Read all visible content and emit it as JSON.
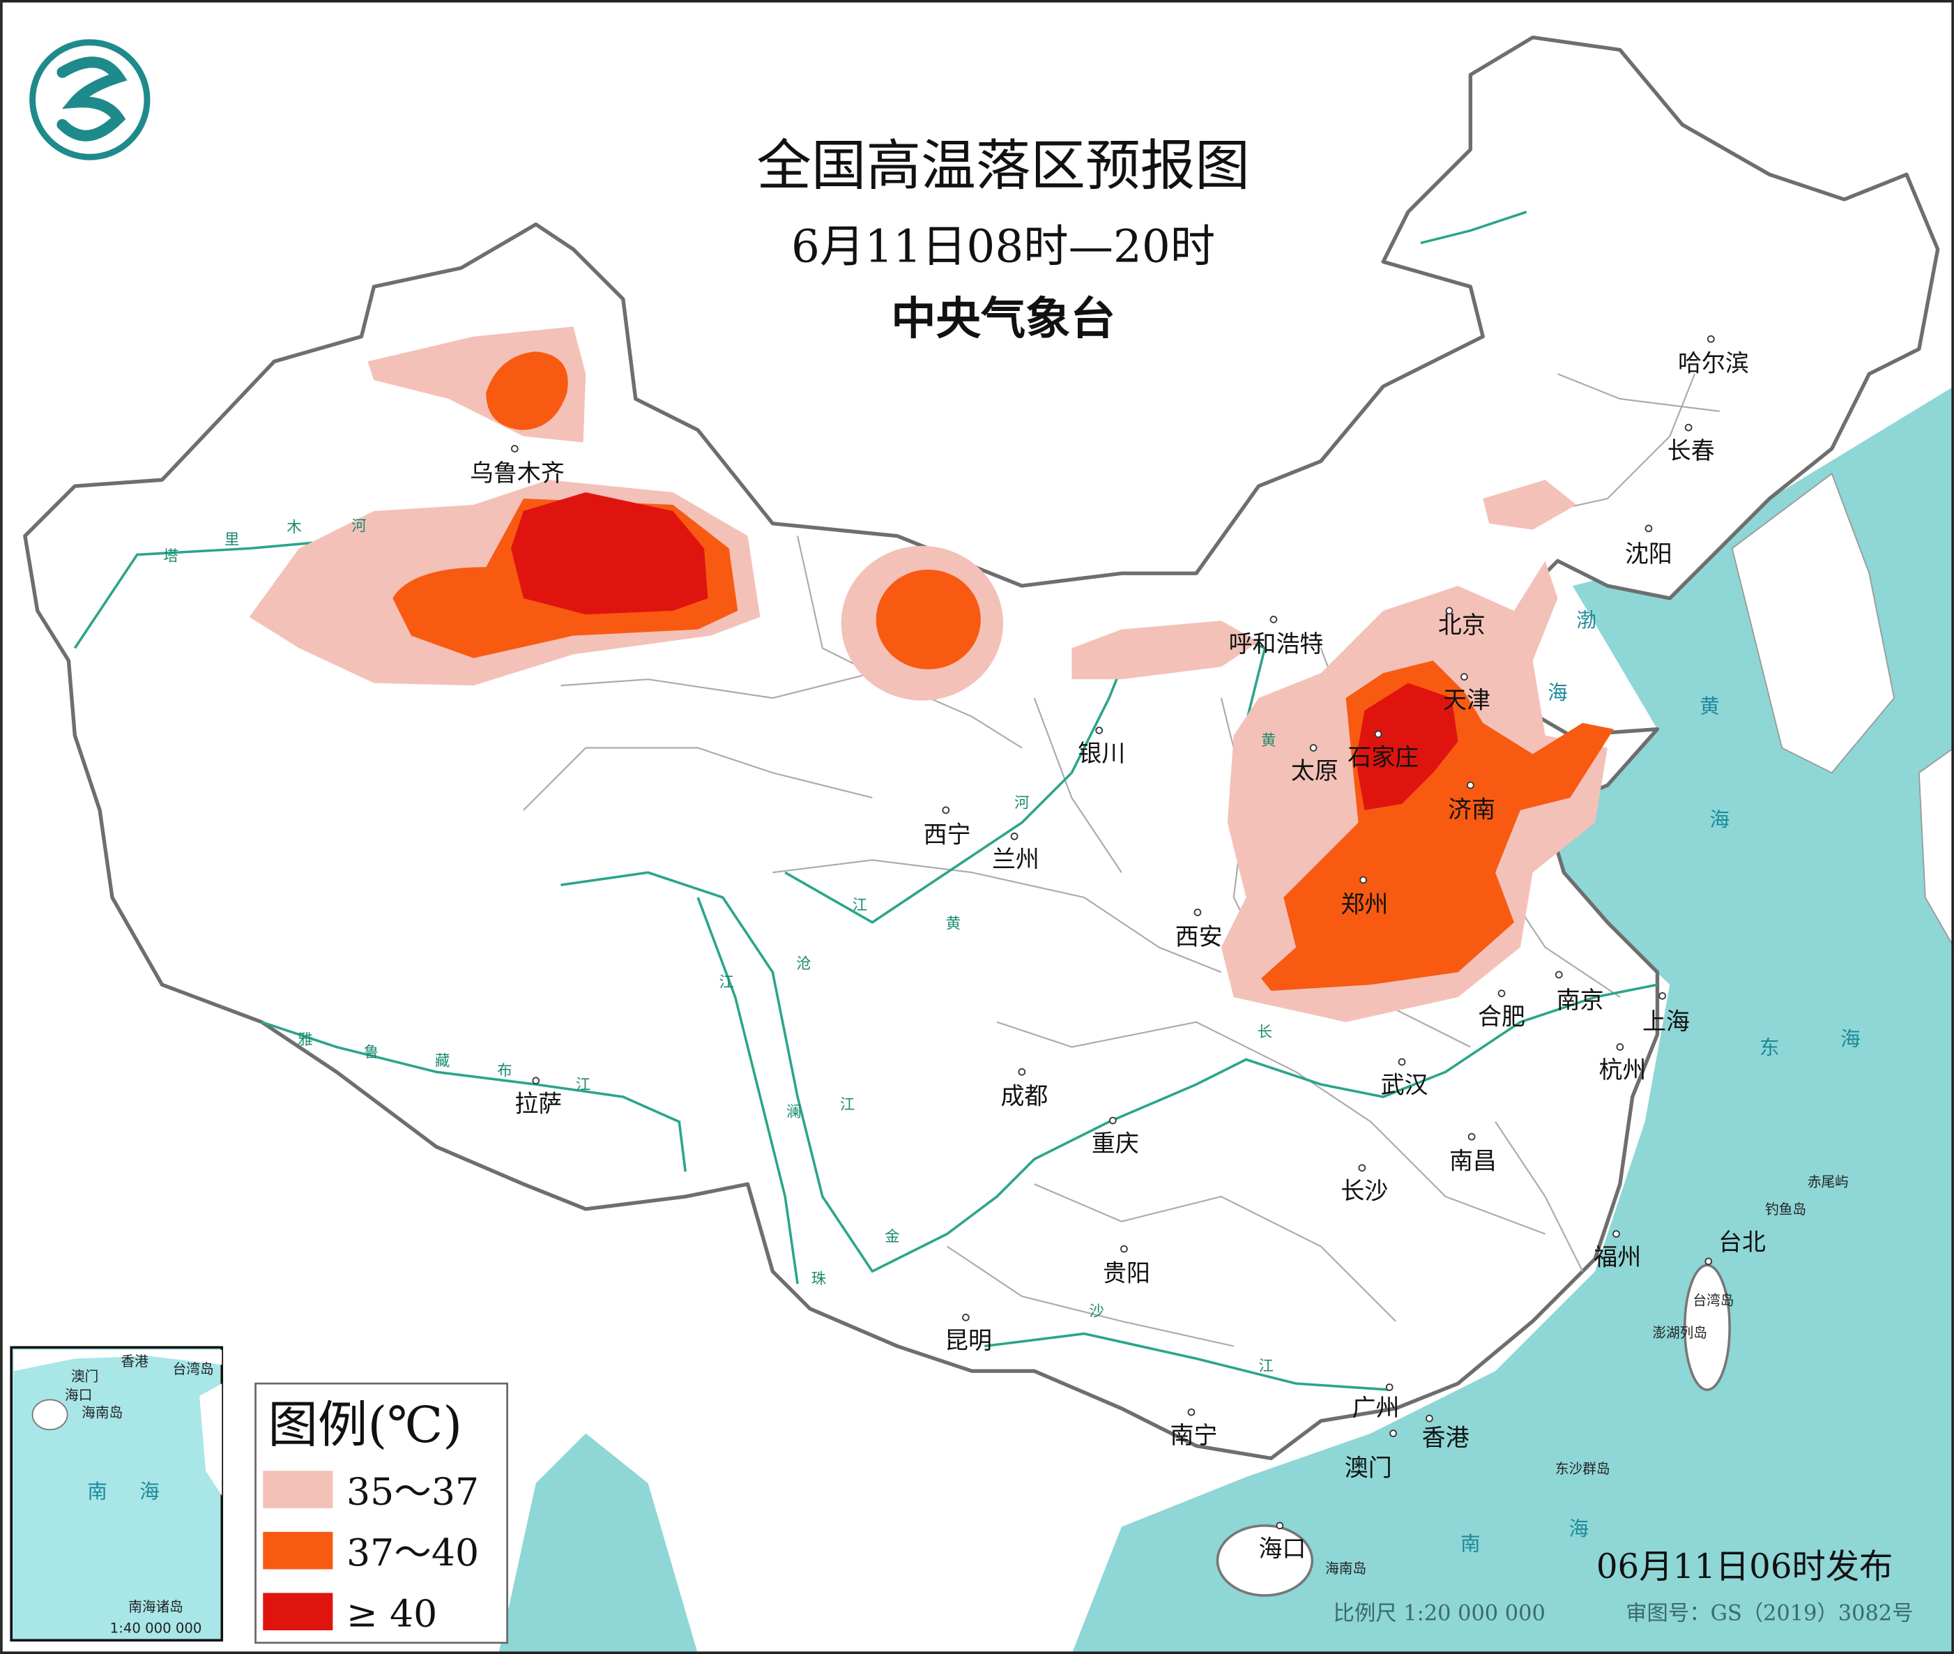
{
  "header": {
    "title": "全国高温落区预报图",
    "subtitle": "6月11日08时—20时",
    "issuer": "中央气象台"
  },
  "logo": {
    "icon": "cma-logo-icon",
    "color": "#1f8a8c"
  },
  "colors": {
    "sea": "#8fd6d6",
    "land": "#ffffff",
    "border": "#777777",
    "river": "#2aa58a",
    "level1": "#f3c1b8",
    "level2": "#f85a12",
    "level3": "#e0140f"
  },
  "legend": {
    "title": "图例(℃)",
    "items": [
      {
        "label": "35～37",
        "color": "#f3c1b8"
      },
      {
        "label": "37～40",
        "color": "#f85a12"
      },
      {
        "label": "≥ 40",
        "color": "#e0140f"
      }
    ]
  },
  "cities": [
    "乌鲁木齐",
    "哈尔滨",
    "长春",
    "沈阳",
    "北京",
    "天津",
    "呼和浩特",
    "石家庄",
    "太原",
    "济南",
    "银川",
    "西宁",
    "兰州",
    "郑州",
    "西安",
    "合肥",
    "南京",
    "上海",
    "杭州",
    "武汉",
    "成都",
    "拉萨",
    "重庆",
    "南昌",
    "长沙",
    "福州",
    "台北",
    "贵阳",
    "昆明",
    "南宁",
    "广州",
    "香港",
    "澳门",
    "海口"
  ],
  "seas": [
    "渤",
    "海",
    "黄",
    "海",
    "东",
    "海",
    "南",
    "海"
  ],
  "islands": [
    "海南岛",
    "台湾岛",
    "澎湖列岛",
    "钓鱼岛",
    "赤尾屿",
    "东沙群岛"
  ],
  "rivers": [
    "塔",
    "里",
    "木",
    "河",
    "雅",
    "鲁",
    "藏",
    "布",
    "江",
    "黄",
    "河",
    "长",
    "江",
    "澜",
    "沧",
    "江",
    "金",
    "沙",
    "江",
    "珠",
    "江",
    "黄"
  ],
  "inset": {
    "labels": [
      "香港",
      "澳门",
      "台湾岛",
      "海口",
      "海南岛",
      "南",
      "海",
      "南海诸岛"
    ],
    "scale": "1:40 000 000"
  },
  "footer": {
    "issued": "06月11日06时发布",
    "scale": "比例尺 1:20 000 000",
    "map_number": "审图号：GS（2019）3082号"
  }
}
